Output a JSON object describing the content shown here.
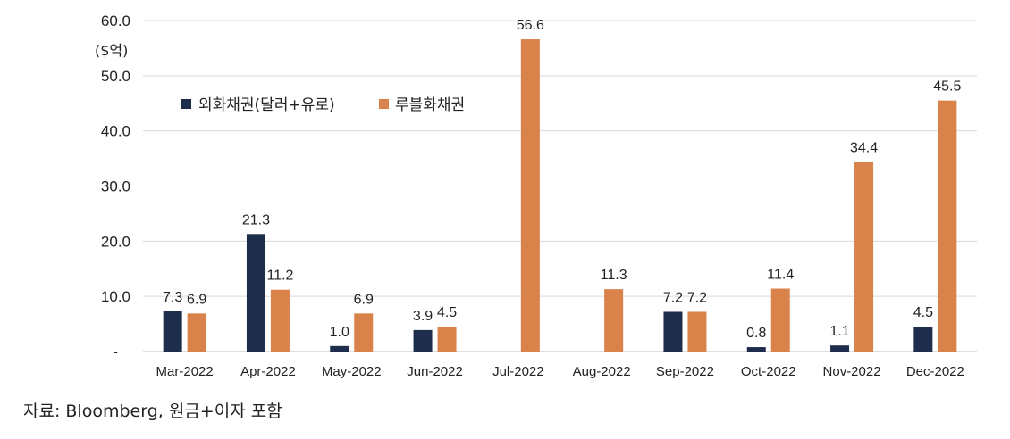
{
  "chart_data": {
    "type": "bar",
    "unit_label": "($억)",
    "categories": [
      "Mar-2022",
      "Apr-2022",
      "May-2022",
      "Jun-2022",
      "Jul-2022",
      "Aug-2022",
      "Sep-2022",
      "Oct-2022",
      "Nov-2022",
      "Dec-2022"
    ],
    "series": [
      {
        "name": "외화채권(달러+유로)",
        "color": "#1f2d4d",
        "values": [
          7.3,
          21.3,
          1.0,
          3.9,
          null,
          null,
          7.2,
          0.8,
          1.1,
          4.5
        ]
      },
      {
        "name": "루블화채권",
        "color": "#d9824a",
        "values": [
          6.9,
          11.2,
          6.9,
          4.5,
          56.6,
          11.3,
          7.2,
          11.4,
          34.4,
          45.5
        ]
      }
    ],
    "ylim": [
      0,
      60
    ],
    "yticks": [
      "-",
      "10.0",
      "20.0",
      "30.0",
      "40.0",
      "50.0",
      "60.0"
    ],
    "grid": true,
    "legend_position": "top-left"
  },
  "source_note": "자료: Bloomberg, 원금+이자 포함"
}
